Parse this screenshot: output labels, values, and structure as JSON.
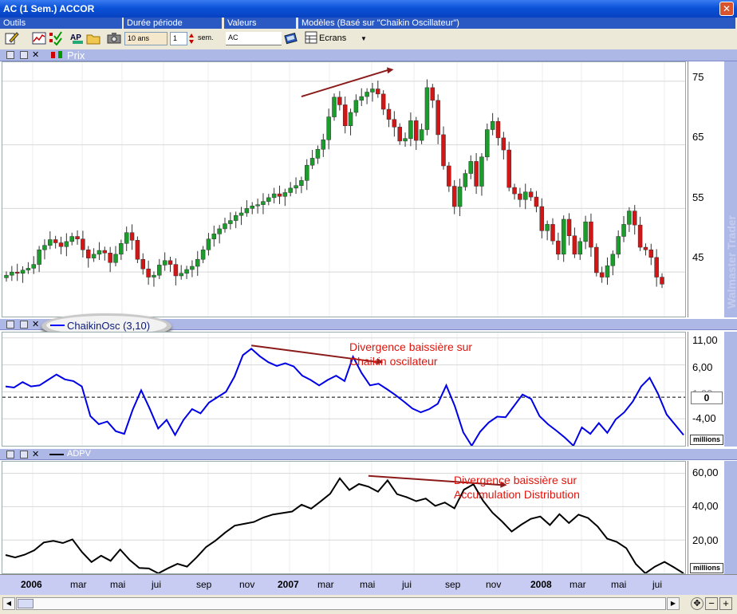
{
  "window": {
    "title": "AC (1 Sem.) ACCOR"
  },
  "toolbar": {
    "outils_label": "Outils",
    "duree_label": "Durée  période",
    "duree_value": "10 ans",
    "periode_value": "1",
    "periode_unit": "sem.",
    "valeurs_label": "Valeurs",
    "valeurs_value": "AC",
    "modeles_label": "Modèles (Basé sur \"Chaikin Oscillateur\")",
    "ecrans_label": "Ecrans"
  },
  "panels": {
    "price": {
      "label": "Prix",
      "ticks": [
        "75",
        "65",
        "55",
        "45"
      ],
      "watermark": "Walmaster Trader"
    },
    "chaikin": {
      "label": "ChaikinOsc (3,10)",
      "ticks": [
        "11,00",
        "6,00",
        "1,00",
        "-4,00"
      ],
      "zero_badge": "0",
      "unit": "millions",
      "annotation_line1": "Divergence baissière sur",
      "annotation_line2": "Chaikin oscilateur"
    },
    "adpv": {
      "label": "ADPV",
      "ticks": [
        "60,00",
        "40,00",
        "20,00"
      ],
      "unit": "millions",
      "annotation_line1": "Divergence baissière sur",
      "annotation_line2": "Accumulation Distribution"
    }
  },
  "time_axis": {
    "labels": [
      {
        "text": "2006",
        "bold": true
      },
      {
        "text": "mar"
      },
      {
        "text": "mai"
      },
      {
        "text": "jui"
      },
      {
        "text": "sep"
      },
      {
        "text": "nov"
      },
      {
        "text": "2007",
        "bold": true
      },
      {
        "text": "mar"
      },
      {
        "text": "mai"
      },
      {
        "text": "jui"
      },
      {
        "text": "sep"
      },
      {
        "text": "nov"
      },
      {
        "text": "2008",
        "bold": true
      },
      {
        "text": "mar"
      },
      {
        "text": "mai"
      },
      {
        "text": "jui"
      }
    ]
  },
  "chart_data": [
    {
      "type": "candlestick",
      "title": "Prix",
      "ylim": [
        38,
        78
      ],
      "yticks": [
        75,
        65,
        55,
        45
      ],
      "series": [
        {
          "name": "Prix",
          "close": [
            44.5,
            45,
            44.8,
            45.3,
            45.6,
            46.2,
            48.5,
            49.2,
            50.1,
            49.6,
            49,
            49.8,
            50.6,
            50.2,
            48.5,
            47.2,
            47.8,
            48.4,
            48,
            46.5,
            47.8,
            49.5,
            51.2,
            50,
            47,
            45.5,
            44.2,
            44.5,
            46.1,
            46.8,
            46.2,
            44.4,
            44.8,
            45.4,
            45.9,
            47,
            48.5,
            50.2,
            51,
            51.8,
            52.6,
            53.1,
            53.9,
            54.3,
            55,
            55.4,
            55.6,
            56.1,
            56.7,
            57.3,
            56.9,
            57.5,
            58.2,
            58.6,
            59.4,
            61.8,
            62.9,
            64.3,
            65.8,
            69.4,
            72.5,
            71.3,
            68,
            70.1,
            72,
            72.6,
            73.3,
            73.8,
            73,
            70.6,
            69,
            67.8,
            65.6,
            66,
            68.8,
            65.7,
            67.4,
            74,
            72,
            66.6,
            61.7,
            58.5,
            55.3,
            58.4,
            60.5,
            62.4,
            58.5,
            63.1,
            67.4,
            68.7,
            66.1,
            64.2,
            58.3,
            57.3,
            56.4,
            57.6,
            56.8,
            55.3,
            51.5,
            52.5,
            49.9,
            47.8,
            53.3,
            50.7,
            47.8,
            49.8,
            52.9,
            48.9,
            44.9,
            44.2,
            46,
            47.8,
            50.6,
            52.5,
            54.6,
            52.4,
            48.9,
            48.5,
            47.3,
            44.2,
            43.1
          ],
          "note": "approximate weekly closes"
        }
      ]
    },
    {
      "type": "line",
      "title": "ChaikinOsc (3,10)",
      "ylim": [
        -9,
        12
      ],
      "yticks": [
        11,
        6,
        1,
        -4
      ],
      "zero_line": 0,
      "series": [
        {
          "name": "ChaikinOsc (3,10)",
          "values": [
            2,
            1.8,
            2.8,
            2,
            2.2,
            3.2,
            4.2,
            3.3,
            3,
            2,
            -3.5,
            -5,
            -4.5,
            -6.3,
            -6.8,
            -2.3,
            1.3,
            -2.1,
            -5.8,
            -4.2,
            -7,
            -4.2,
            -2.2,
            -3,
            -1,
            0,
            1,
            3.8,
            7.8,
            9,
            7.6,
            6.5,
            5.8,
            6.3,
            5.7,
            4,
            3.2,
            2.2,
            3.2,
            4,
            3,
            7.5,
            4.5,
            2.2,
            2.5,
            1.5,
            0.4,
            -0.8,
            -2.1,
            -2.8,
            -2.2,
            -1.2,
            2.2,
            -1.6,
            -6.5,
            -9,
            -6.4,
            -4.7,
            -3.6,
            -3.7,
            -1.6,
            0.5,
            -0.3,
            -3.5,
            -5,
            -6.2,
            -7.5,
            -9,
            -5.6,
            -6.8,
            -4.8,
            -6.6,
            -4.1,
            -2.8,
            -0.8,
            2,
            3.6,
            0.6,
            -3.2,
            -5.1,
            -7
          ]
        }
      ]
    },
    {
      "type": "line",
      "title": "ADPV",
      "ylim": [
        0,
        67
      ],
      "yticks": [
        60,
        40,
        20
      ],
      "series": [
        {
          "name": "ADPV",
          "values": [
            11,
            9.5,
            11.2,
            13.8,
            18.5,
            19.5,
            18.2,
            20.4,
            12.8,
            6.8,
            10.6,
            7.5,
            14.3,
            8,
            3.2,
            2.9,
            0,
            3,
            5.7,
            4,
            9.5,
            15.8,
            19.7,
            24.5,
            28.6,
            29.7,
            30.8,
            33.5,
            35.3,
            36.2,
            37.1,
            41.2,
            38.8,
            43.2,
            47.8,
            57,
            50,
            53.6,
            52,
            49,
            55.8,
            47.5,
            45.7,
            43.3,
            44.9,
            40.5,
            42.5,
            39,
            50.2,
            53.5,
            43.6,
            36.3,
            31.1,
            25.1,
            29.2,
            32.7,
            34.1,
            29,
            35.5,
            30.2,
            35.2,
            33.2,
            28.1,
            20.8,
            18.9,
            15.1,
            5.6,
            0,
            4,
            6.9,
            3.6,
            0
          ]
        }
      ]
    }
  ]
}
